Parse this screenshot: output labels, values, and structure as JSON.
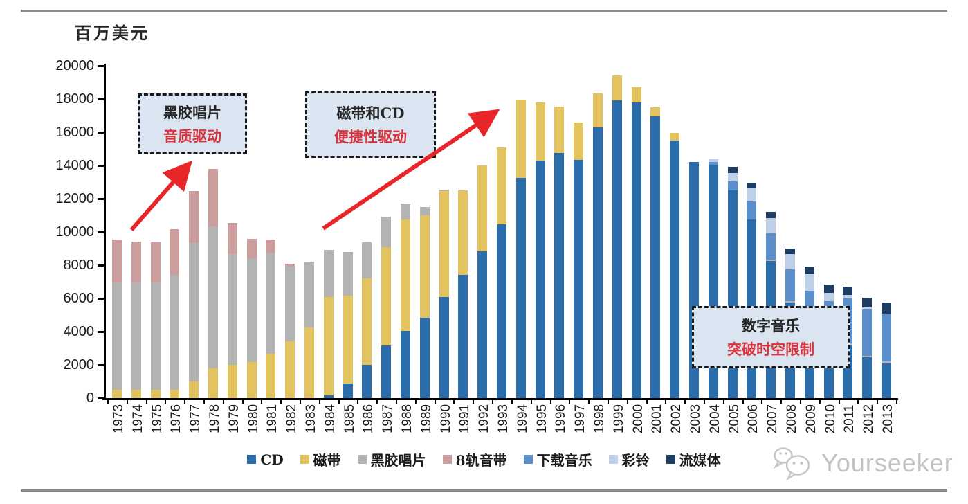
{
  "chart_data": {
    "type": "bar",
    "stacked": true,
    "title": "",
    "xlabel": "",
    "ylabel": "百万美元",
    "ylim": [
      0,
      20000
    ],
    "ytick_step": 2000,
    "grid": false,
    "legend_position": "bottom",
    "categories": [
      "1973",
      "1974",
      "1975",
      "1976",
      "1977",
      "1978",
      "1979",
      "1980",
      "1981",
      "1982",
      "1983",
      "1984",
      "1985",
      "1986",
      "1987",
      "1988",
      "1989",
      "1990",
      "1991",
      "1992",
      "1993",
      "1994",
      "1995",
      "1996",
      "1997",
      "1998",
      "1999",
      "2000",
      "2001",
      "2002",
      "2003",
      "2004",
      "2005",
      "2006",
      "2007",
      "2008",
      "2009",
      "2010",
      "2011",
      "2012",
      "2013"
    ],
    "series": [
      {
        "name": "CD",
        "color": "#2b6cab",
        "values": [
          0,
          0,
          0,
          0,
          0,
          0,
          0,
          0,
          0,
          0,
          0,
          150,
          875,
          2000,
          3150,
          4050,
          4850,
          6100,
          7400,
          8850,
          10450,
          13250,
          14300,
          14750,
          14350,
          16300,
          17900,
          17800,
          16950,
          15500,
          14200,
          14000,
          12500,
          10750,
          8250,
          5750,
          4300,
          3550,
          3200,
          2450,
          2100
        ]
      },
      {
        "name": "磁带",
        "color": "#e2c35f",
        "values": [
          500,
          500,
          500,
          500,
          1000,
          1800,
          2000,
          2150,
          2650,
          3400,
          4250,
          5950,
          5300,
          5200,
          5950,
          6700,
          6150,
          6350,
          5100,
          5150,
          4650,
          4700,
          3500,
          2800,
          2250,
          2050,
          1500,
          900,
          550,
          450,
          0,
          0,
          0,
          0,
          0,
          0,
          0,
          0,
          0,
          0,
          0
        ]
      },
      {
        "name": "黑胶唱片",
        "color": "#b3b3b3",
        "values": [
          6450,
          6450,
          6450,
          6900,
          8350,
          8550,
          6650,
          6250,
          6100,
          4500,
          3950,
          2800,
          2625,
          2175,
          1800,
          950,
          500,
          100,
          0,
          0,
          0,
          0,
          0,
          0,
          0,
          0,
          0,
          0,
          0,
          0,
          0,
          0,
          0,
          0,
          100,
          100,
          100,
          100,
          100,
          100,
          100
        ]
      },
      {
        "name": "8轨音带",
        "color": "#cb9d9d",
        "values": [
          2600,
          2450,
          2450,
          2750,
          3100,
          3450,
          1900,
          1200,
          800,
          200,
          0,
          0,
          0,
          0,
          0,
          0,
          0,
          0,
          0,
          0,
          0,
          0,
          0,
          0,
          0,
          0,
          0,
          0,
          0,
          0,
          0,
          0,
          0,
          0,
          0,
          0,
          0,
          0,
          0,
          0,
          0
        ]
      },
      {
        "name": "下载音乐",
        "color": "#5b8fcb",
        "values": [
          0,
          0,
          0,
          0,
          0,
          0,
          0,
          0,
          0,
          0,
          0,
          0,
          0,
          0,
          0,
          0,
          0,
          0,
          0,
          0,
          0,
          0,
          0,
          0,
          0,
          0,
          0,
          0,
          0,
          0,
          0,
          200,
          550,
          1100,
          1550,
          1900,
          2050,
          2200,
          2700,
          2800,
          2850
        ]
      },
      {
        "name": "彩铃",
        "color": "#bdd0e7",
        "values": [
          0,
          0,
          0,
          0,
          0,
          0,
          0,
          0,
          0,
          0,
          0,
          0,
          0,
          0,
          0,
          0,
          0,
          0,
          0,
          0,
          0,
          0,
          0,
          0,
          0,
          0,
          0,
          0,
          0,
          0,
          0,
          175,
          500,
          775,
          925,
          900,
          1000,
          500,
          200,
          100,
          50
        ]
      },
      {
        "name": "流媒体",
        "color": "#1d3d63",
        "values": [
          0,
          0,
          0,
          0,
          0,
          0,
          0,
          0,
          0,
          0,
          0,
          0,
          0,
          0,
          0,
          0,
          0,
          0,
          0,
          0,
          0,
          0,
          0,
          0,
          0,
          0,
          0,
          0,
          0,
          0,
          0,
          0,
          350,
          350,
          390,
          350,
          450,
          500,
          520,
          590,
          665
        ]
      }
    ],
    "annotations": [
      {
        "line1": "黑胶唱片",
        "line2": "音质驱动"
      },
      {
        "line1": "磁带和CD",
        "line2": "便捷性驱动"
      },
      {
        "line1": "数字音乐",
        "line2": "突破时空限制"
      }
    ]
  },
  "colors": {
    "arrow": "#e8262a",
    "annotation_bg": "#dbe5f1",
    "annotation_accent_text": "#d9333b",
    "axis": "#000000"
  },
  "watermark": {
    "icon": "wechat-icon",
    "text": "Yourseeker"
  }
}
